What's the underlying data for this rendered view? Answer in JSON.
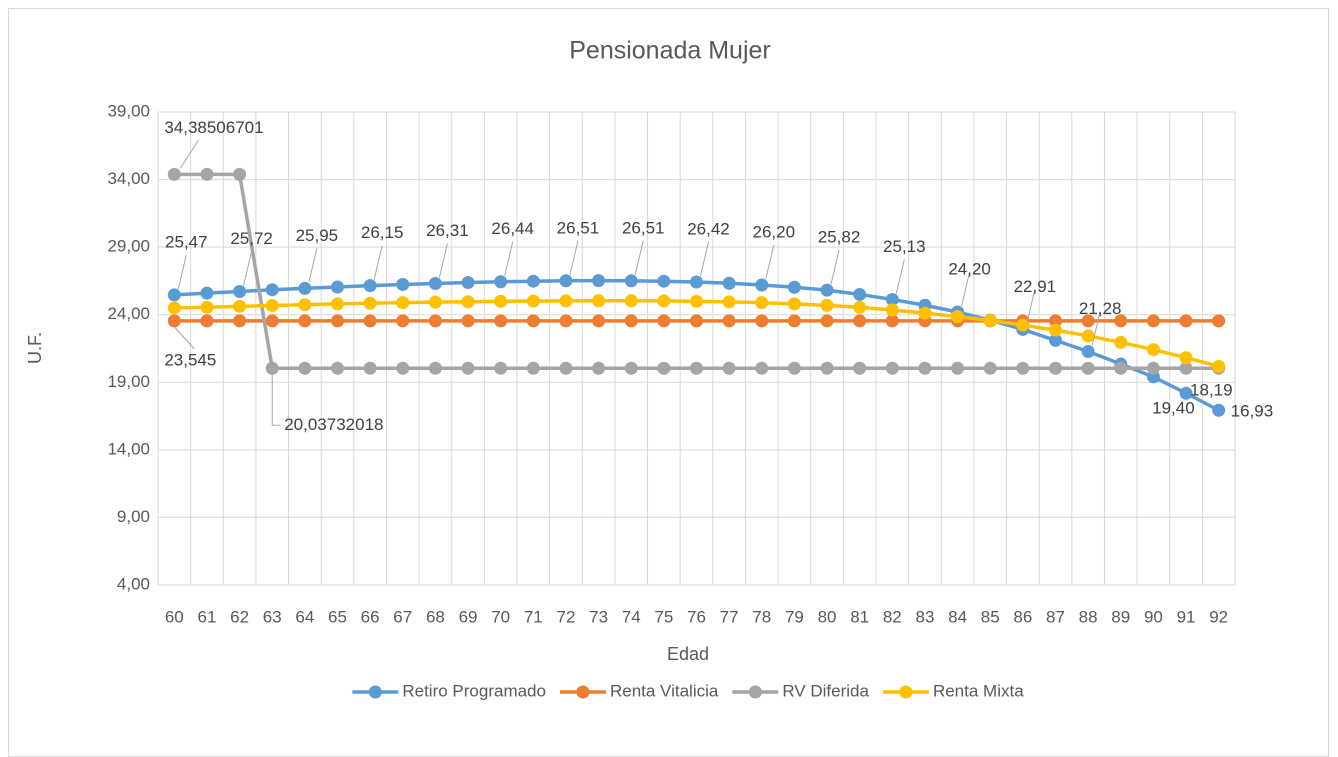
{
  "chart_data": {
    "type": "line",
    "title": "Pensionada Mujer",
    "x_label": "Edad",
    "y_label": "U.F.",
    "categories": [
      "60",
      "61",
      "62",
      "63",
      "64",
      "65",
      "66",
      "67",
      "68",
      "69",
      "70",
      "71",
      "72",
      "73",
      "74",
      "75",
      "76",
      "77",
      "78",
      "79",
      "80",
      "81",
      "82",
      "83",
      "84",
      "85",
      "86",
      "87",
      "88",
      "89",
      "90",
      "91",
      "92"
    ],
    "ylim": [
      4,
      39
    ],
    "yticks": [
      {
        "value": 4,
        "label": "4,00"
      },
      {
        "value": 9,
        "label": "9,00"
      },
      {
        "value": 14,
        "label": "14,00"
      },
      {
        "value": 19,
        "label": "19,00"
      },
      {
        "value": 24,
        "label": "24,00"
      },
      {
        "value": 29,
        "label": "29,00"
      },
      {
        "value": 34,
        "label": "34,00"
      },
      {
        "value": 39,
        "label": "39,00"
      }
    ],
    "grid": true,
    "legend": "bottom",
    "series": [
      {
        "name": "Retiro Programado",
        "color": "#5b9bd5",
        "values": [
          25.47,
          25.6,
          25.72,
          25.85,
          25.95,
          26.05,
          26.15,
          26.24,
          26.31,
          26.38,
          26.44,
          26.48,
          26.51,
          26.52,
          26.51,
          26.48,
          26.42,
          26.33,
          26.2,
          26.03,
          25.82,
          25.5,
          25.13,
          24.7,
          24.2,
          23.6,
          22.91,
          22.1,
          21.28,
          20.35,
          19.4,
          18.19,
          16.93
        ],
        "value_labels": [
          "25,47",
          null,
          "25,72",
          null,
          "25,95",
          null,
          "26,15",
          null,
          "26,31",
          null,
          "26,44",
          null,
          "26,51",
          null,
          "26,51",
          null,
          "26,42",
          null,
          "26,20",
          null,
          "25,82",
          null,
          "25,13",
          null,
          "24,20",
          null,
          "22,91",
          null,
          "21,28",
          null,
          "19,40",
          "18,19",
          "16,93"
        ]
      },
      {
        "name": "Renta Vitalicia",
        "color": "#ed7d31",
        "values": [
          23.545,
          23.545,
          23.545,
          23.545,
          23.545,
          23.545,
          23.545,
          23.545,
          23.545,
          23.545,
          23.545,
          23.545,
          23.545,
          23.545,
          23.545,
          23.545,
          23.545,
          23.545,
          23.545,
          23.545,
          23.545,
          23.545,
          23.545,
          23.545,
          23.545,
          23.545,
          23.545,
          23.545,
          23.545,
          23.545,
          23.545,
          23.545,
          23.545
        ],
        "value_labels": [
          "23,545",
          null,
          null,
          null,
          null,
          null,
          null,
          null,
          null,
          null,
          null,
          null,
          null,
          null,
          null,
          null,
          null,
          null,
          null,
          null,
          null,
          null,
          null,
          null,
          null,
          null,
          null,
          null,
          null,
          null,
          null,
          null,
          null
        ]
      },
      {
        "name": "RV Diferida",
        "color": "#a5a5a5",
        "values": [
          34.38506701,
          34.38506701,
          34.38506701,
          20.03732018,
          20.03732018,
          20.03732018,
          20.03732018,
          20.03732018,
          20.03732018,
          20.03732018,
          20.03732018,
          20.03732018,
          20.03732018,
          20.03732018,
          20.03732018,
          20.03732018,
          20.03732018,
          20.03732018,
          20.03732018,
          20.03732018,
          20.03732018,
          20.03732018,
          20.03732018,
          20.03732018,
          20.03732018,
          20.03732018,
          20.03732018,
          20.03732018,
          20.03732018,
          20.03732018,
          20.03732018,
          20.03732018,
          20.03732018
        ],
        "value_labels": [
          "34,38506701",
          null,
          null,
          "20,03732018",
          null,
          null,
          null,
          null,
          null,
          null,
          null,
          null,
          null,
          null,
          null,
          null,
          null,
          null,
          null,
          null,
          null,
          null,
          null,
          null,
          null,
          null,
          null,
          null,
          null,
          null,
          null,
          null,
          null
        ]
      },
      {
        "name": "Renta Mixta",
        "color": "#ffc000",
        "values": [
          24.5,
          24.55,
          24.62,
          24.68,
          24.74,
          24.8,
          24.85,
          24.89,
          24.93,
          24.96,
          24.99,
          25.01,
          25.02,
          25.03,
          25.03,
          25.02,
          24.99,
          24.95,
          24.89,
          24.8,
          24.69,
          24.54,
          24.35,
          24.12,
          23.86,
          23.57,
          23.23,
          22.86,
          22.43,
          21.95,
          21.42,
          20.82,
          20.18
        ]
      }
    ]
  }
}
